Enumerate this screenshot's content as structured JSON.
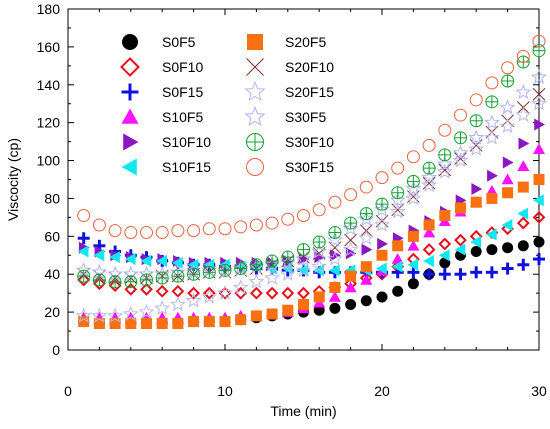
{
  "chart_data": {
    "type": "scatter",
    "title": "",
    "xlabel": "Time (min)",
    "ylabel": "Viscocity (cp)",
    "xlim": [
      0,
      30
    ],
    "ylim": [
      0,
      180
    ],
    "xticks": [
      0,
      10,
      20,
      30
    ],
    "yticks": [
      0,
      20,
      40,
      60,
      80,
      100,
      120,
      140,
      160,
      180
    ],
    "grid": false,
    "legend_position": "top-left",
    "x": [
      1,
      2,
      3,
      4,
      5,
      6,
      7,
      8,
      9,
      10,
      11,
      12,
      13,
      14,
      15,
      16,
      17,
      18,
      19,
      20,
      21,
      22,
      23,
      24,
      25,
      26,
      27,
      28,
      29,
      30
    ],
    "series": [
      {
        "name": "S0F5",
        "marker": "circle-filled",
        "color": "#000000",
        "values": [
          15,
          14,
          14,
          14,
          14,
          14,
          14,
          15,
          15,
          15,
          16,
          17,
          18,
          19,
          20,
          21,
          22,
          24,
          26,
          28,
          31,
          35,
          40,
          46,
          50,
          52,
          53,
          54,
          55,
          57
        ]
      },
      {
        "name": "S0F10",
        "marker": "diamond-open",
        "color": "#e8101c",
        "values": [
          37,
          35,
          34,
          32,
          32,
          31,
          31,
          30,
          30,
          30,
          30,
          30,
          30,
          30,
          30,
          31,
          33,
          35,
          38,
          40,
          44,
          48,
          53,
          56,
          58,
          60,
          62,
          64,
          67,
          70
        ]
      },
      {
        "name": "S0F15",
        "marker": "plus",
        "color": "#1010e0",
        "values": [
          59,
          55,
          52,
          50,
          49,
          47,
          46,
          45,
          45,
          44,
          44,
          43,
          43,
          42,
          42,
          41,
          41,
          41,
          41,
          41,
          41,
          41,
          40,
          40,
          40,
          41,
          41,
          43,
          45,
          48
        ]
      },
      {
        "name": "S10F5",
        "marker": "triangle-up-filled",
        "color": "#ff10ff",
        "values": [
          17,
          17,
          17,
          17,
          17,
          17,
          17,
          17,
          17,
          17,
          18,
          18,
          19,
          20,
          22,
          25,
          28,
          33,
          37,
          42,
          48,
          55,
          62,
          68,
          73,
          78,
          84,
          90,
          97,
          106
        ]
      },
      {
        "name": "S10F10",
        "marker": "triangle-right-filled",
        "color": "#8a18c0",
        "values": [
          54,
          52,
          50,
          49,
          48,
          48,
          47,
          46,
          46,
          46,
          46,
          46,
          46,
          47,
          48,
          49,
          50,
          51,
          53,
          56,
          59,
          63,
          68,
          73,
          79,
          85,
          92,
          99,
          109,
          119
        ]
      },
      {
        "name": "S10F15",
        "marker": "triangle-left-filled",
        "color": "#10e8f0",
        "values": [
          52,
          50,
          49,
          48,
          47,
          47,
          46,
          45,
          45,
          45,
          44,
          44,
          43,
          43,
          42,
          42,
          42,
          42,
          42,
          43,
          44,
          45,
          47,
          50,
          53,
          57,
          61,
          66,
          72,
          79
        ]
      },
      {
        "name": "S20F5",
        "marker": "square-filled",
        "color": "#f87010",
        "values": [
          15,
          14,
          14,
          14,
          14,
          14,
          14,
          15,
          15,
          15,
          16,
          18,
          19,
          21,
          24,
          28,
          33,
          39,
          44,
          50,
          55,
          60,
          66,
          71,
          75,
          78,
          80,
          83,
          86,
          90
        ]
      },
      {
        "name": "S20F10",
        "marker": "x",
        "color": "#803030",
        "values": [
          40,
          39,
          38,
          38,
          38,
          39,
          39,
          40,
          41,
          41,
          42,
          43,
          45,
          47,
          49,
          51,
          54,
          58,
          63,
          68,
          74,
          81,
          88,
          95,
          101,
          108,
          115,
          121,
          128,
          135
        ]
      },
      {
        "name": "S20F15",
        "marker": "star-open",
        "color": "#b8b8e8",
        "values": [
          18,
          18,
          18,
          19,
          20,
          22,
          24,
          26,
          28,
          30,
          33,
          36,
          38,
          40,
          42,
          44,
          48,
          53,
          59,
          66,
          73,
          80,
          87,
          94,
          100,
          106,
          112,
          118,
          124,
          130
        ]
      },
      {
        "name": "S30F5",
        "marker": "star-open",
        "color": "#b0b0ff",
        "values": [
          42,
          41,
          40,
          40,
          40,
          40,
          41,
          41,
          42,
          42,
          43,
          44,
          45,
          46,
          48,
          52,
          58,
          64,
          69,
          74,
          79,
          85,
          91,
          98,
          104,
          112,
          120,
          128,
          136,
          144
        ]
      },
      {
        "name": "S30F10",
        "marker": "circle-plus-open",
        "color": "#10a030",
        "values": [
          39,
          37,
          36,
          36,
          37,
          38,
          39,
          40,
          41,
          42,
          43,
          45,
          47,
          49,
          53,
          57,
          62,
          67,
          72,
          77,
          83,
          89,
          96,
          103,
          112,
          121,
          131,
          142,
          152,
          158
        ]
      },
      {
        "name": "S30F15",
        "marker": "circle-open",
        "color": "#f06040",
        "values": [
          71,
          66,
          63,
          62,
          62,
          62,
          63,
          63,
          64,
          64,
          65,
          66,
          67,
          69,
          71,
          74,
          78,
          82,
          86,
          91,
          96,
          102,
          108,
          116,
          124,
          132,
          141,
          149,
          155,
          163
        ]
      }
    ]
  }
}
